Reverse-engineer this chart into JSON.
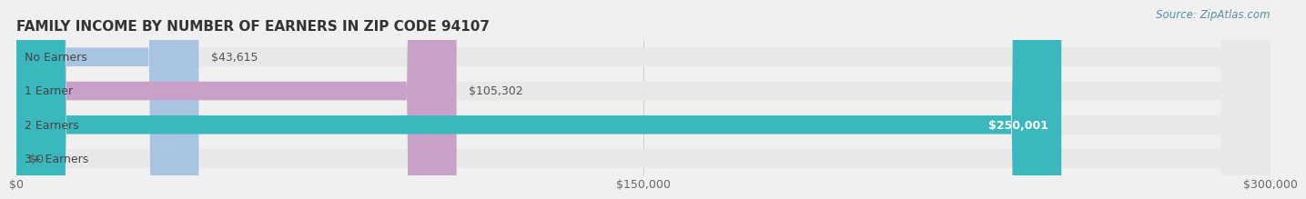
{
  "title": "FAMILY INCOME BY NUMBER OF EARNERS IN ZIP CODE 94107",
  "source": "Source: ZipAtlas.com",
  "categories": [
    "No Earners",
    "1 Earner",
    "2 Earners",
    "3+ Earners"
  ],
  "values": [
    43615,
    105302,
    250001,
    0
  ],
  "bar_colors": [
    "#a8c4e0",
    "#c9a0c8",
    "#3ab8be",
    "#b0b8e8"
  ],
  "label_colors": [
    "#555555",
    "#555555",
    "#ffffff",
    "#555555"
  ],
  "value_labels": [
    "$43,615",
    "$105,302",
    "$250,001",
    "$0"
  ],
  "xlim": [
    0,
    300000
  ],
  "xticks": [
    0,
    150000,
    300000
  ],
  "xtick_labels": [
    "$0",
    "$150,000",
    "$300,000"
  ],
  "background_color": "#f0f0f0",
  "bar_background_color": "#e8e8e8",
  "title_fontsize": 11,
  "label_fontsize": 9,
  "value_fontsize": 9,
  "source_fontsize": 8.5
}
